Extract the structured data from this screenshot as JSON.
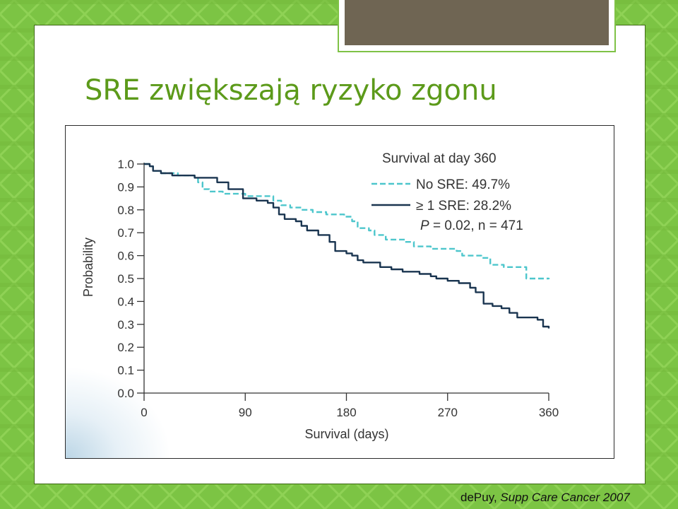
{
  "slide": {
    "title": "SRE zwiększają ryzyko zgonu",
    "citation_author": "dePuy,",
    "citation_journal": "Supp Care Cancer 2007"
  },
  "colors": {
    "background_green": "#7cc444",
    "title_green": "#5c9a1a",
    "no_sre_series": "#4dc6cc",
    "sre_series": "#1a3550",
    "title_tab": "#6f6553"
  },
  "chart_data": {
    "type": "line",
    "xlabel": "Survival (days)",
    "ylabel": "Probability",
    "xlim": [
      0,
      360
    ],
    "ylim": [
      0,
      1.0
    ],
    "x_ticks": [
      "0",
      "90",
      "180",
      "270",
      "360"
    ],
    "y_ticks": [
      "0.0",
      "0.1",
      "0.2",
      "0.3",
      "0.4",
      "0.5",
      "0.6",
      "0.7",
      "0.8",
      "0.9",
      "1.0"
    ],
    "grid": false,
    "legend_placement": "top-right",
    "legend_title": "Survival at day 360",
    "annotation": {
      "p_label": "P",
      "rest": " = 0.02, n = 471"
    },
    "series": [
      {
        "name": "No SRE: 49.7%",
        "style": "dashed",
        "color": "#4dc6cc",
        "points": [
          [
            0,
            1.0
          ],
          [
            5,
            0.99
          ],
          [
            8,
            0.97
          ],
          [
            15,
            0.96
          ],
          [
            25,
            0.96
          ],
          [
            30,
            0.95
          ],
          [
            45,
            0.94
          ],
          [
            48,
            0.92
          ],
          [
            52,
            0.89
          ],
          [
            58,
            0.88
          ],
          [
            60,
            0.88
          ],
          [
            70,
            0.87
          ],
          [
            80,
            0.87
          ],
          [
            85,
            0.87
          ],
          [
            90,
            0.86
          ],
          [
            105,
            0.86
          ],
          [
            115,
            0.84
          ],
          [
            122,
            0.82
          ],
          [
            130,
            0.81
          ],
          [
            140,
            0.8
          ],
          [
            150,
            0.79
          ],
          [
            160,
            0.79
          ],
          [
            162,
            0.78
          ],
          [
            170,
            0.78
          ],
          [
            178,
            0.77
          ],
          [
            185,
            0.75
          ],
          [
            190,
            0.72
          ],
          [
            200,
            0.71
          ],
          [
            205,
            0.69
          ],
          [
            215,
            0.67
          ],
          [
            225,
            0.67
          ],
          [
            232,
            0.66
          ],
          [
            240,
            0.64
          ],
          [
            255,
            0.63
          ],
          [
            270,
            0.63
          ],
          [
            278,
            0.62
          ],
          [
            283,
            0.6
          ],
          [
            295,
            0.6
          ],
          [
            300,
            0.59
          ],
          [
            308,
            0.56
          ],
          [
            320,
            0.55
          ],
          [
            335,
            0.55
          ],
          [
            340,
            0.5
          ],
          [
            360,
            0.497
          ]
        ]
      },
      {
        "name": "≥ 1 SRE: 28.2%",
        "style": "solid",
        "color": "#1a3550",
        "points": [
          [
            0,
            1.0
          ],
          [
            5,
            0.99
          ],
          [
            8,
            0.97
          ],
          [
            15,
            0.96
          ],
          [
            25,
            0.95
          ],
          [
            35,
            0.95
          ],
          [
            45,
            0.94
          ],
          [
            55,
            0.94
          ],
          [
            65,
            0.92
          ],
          [
            75,
            0.89
          ],
          [
            88,
            0.88
          ],
          [
            88,
            0.85
          ],
          [
            95,
            0.85
          ],
          [
            100,
            0.84
          ],
          [
            110,
            0.83
          ],
          [
            115,
            0.81
          ],
          [
            120,
            0.78
          ],
          [
            125,
            0.76
          ],
          [
            135,
            0.75
          ],
          [
            140,
            0.73
          ],
          [
            145,
            0.71
          ],
          [
            155,
            0.69
          ],
          [
            165,
            0.66
          ],
          [
            170,
            0.62
          ],
          [
            180,
            0.61
          ],
          [
            185,
            0.6
          ],
          [
            190,
            0.58
          ],
          [
            195,
            0.57
          ],
          [
            210,
            0.55
          ],
          [
            220,
            0.54
          ],
          [
            230,
            0.53
          ],
          [
            245,
            0.52
          ],
          [
            255,
            0.51
          ],
          [
            260,
            0.5
          ],
          [
            270,
            0.49
          ],
          [
            280,
            0.48
          ],
          [
            290,
            0.46
          ],
          [
            295,
            0.44
          ],
          [
            302,
            0.39
          ],
          [
            310,
            0.38
          ],
          [
            318,
            0.37
          ],
          [
            325,
            0.35
          ],
          [
            332,
            0.33
          ],
          [
            350,
            0.32
          ],
          [
            355,
            0.29
          ],
          [
            360,
            0.282
          ]
        ]
      }
    ]
  }
}
